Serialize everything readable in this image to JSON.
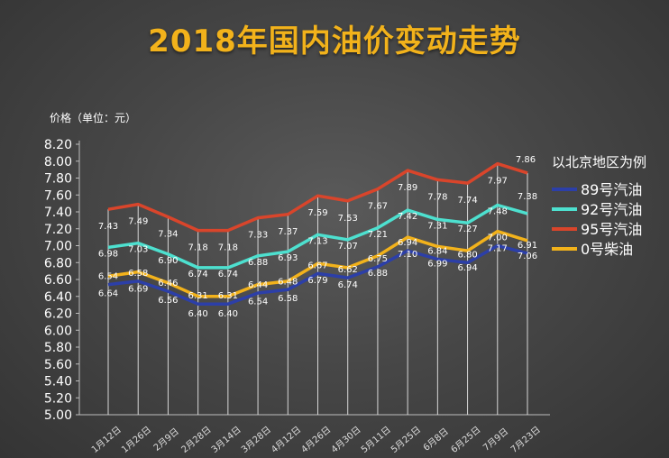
{
  "title": "2018年国内油价变动走势",
  "chart_data": {
    "type": "line",
    "ylabel": "价格（单位：元）",
    "ylim": [
      5.0,
      8.2
    ],
    "ytick_step": 0.2,
    "grid": false,
    "legend_title": "以北京地区为例",
    "legend_position": "right",
    "categories": [
      "1月12日",
      "1月26日",
      "2月9日",
      "2月28日",
      "3月14日",
      "3月28日",
      "4月12日",
      "4月26日",
      "4月30日",
      "5月11日",
      "5月25日",
      "6月8日",
      "6月25日",
      "7月9日",
      "7月23日"
    ],
    "series": [
      {
        "name": "89号汽油",
        "color": "#2c3fa8",
        "values": [
          6.54,
          6.58,
          6.46,
          6.31,
          6.31,
          6.44,
          6.48,
          6.67,
          6.62,
          6.75,
          6.94,
          6.84,
          6.8,
          7.0,
          6.91
        ]
      },
      {
        "name": "92号汽油",
        "color": "#4de0cf",
        "values": [
          6.98,
          7.03,
          6.9,
          6.74,
          6.74,
          6.88,
          6.93,
          7.13,
          7.07,
          7.21,
          7.42,
          7.31,
          7.27,
          7.48,
          7.38
        ]
      },
      {
        "name": "95号汽油",
        "color": "#d9452b",
        "values": [
          7.43,
          7.49,
          7.34,
          7.18,
          7.18,
          7.33,
          7.37,
          7.59,
          7.53,
          7.67,
          7.89,
          7.78,
          7.74,
          7.97,
          7.86
        ]
      },
      {
        "name": "0号柴油",
        "color": "#f2b21b",
        "values": [
          6.64,
          6.69,
          6.56,
          6.4,
          6.4,
          6.54,
          6.58,
          6.79,
          6.74,
          6.88,
          7.1,
          6.99,
          6.94,
          7.17,
          7.06
        ]
      }
    ],
    "data_labels": [
      {
        "series": "95号汽油",
        "values": [
          "7.43",
          "7.49",
          "7.34",
          "7.18",
          "7.18",
          "7.33",
          "7.37",
          "7.59",
          "7.53",
          "7.67",
          "7.89",
          "7.78",
          "7.74",
          "7.97",
          "7.86"
        ]
      },
      {
        "series": "92号汽油",
        "values": [
          "6.98",
          "7.03",
          "6.90",
          "6.74",
          "6.74",
          "6.88",
          "6.93",
          "7.13",
          "7.07",
          "7.21",
          "7.42",
          "7.31",
          "7.27",
          "7.48",
          "7.38"
        ]
      },
      {
        "series": "89号汽油",
        "values": [
          "6.54",
          "6.58",
          "6.46",
          "6.31",
          "6.31",
          "6.44",
          "6.48",
          "6.67",
          "6.62",
          "6.75",
          "6.94",
          "6.84",
          "6.80",
          "7.00",
          "6.91"
        ]
      },
      {
        "series": "0号柴油",
        "values": [
          "6.64",
          "6.69",
          "6.56",
          "6.40",
          "6.40",
          "6.54",
          "6.58",
          "6.79",
          "6.74",
          "6.88",
          "7.10",
          "6.99",
          "6.94",
          "7.17",
          "7.06"
        ]
      }
    ]
  }
}
